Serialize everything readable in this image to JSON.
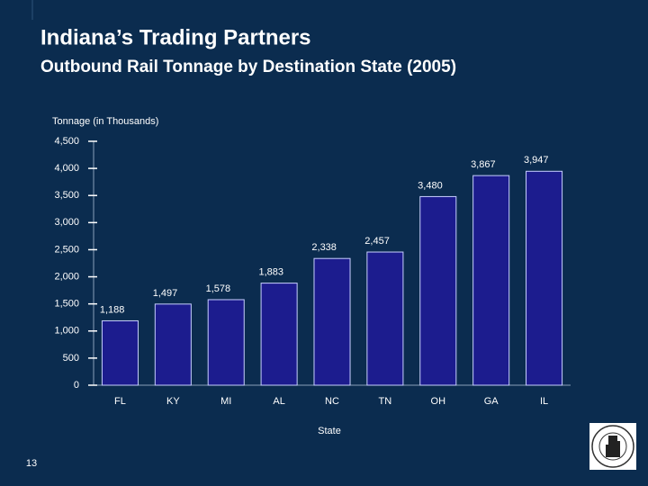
{
  "chart_data": {
    "type": "bar",
    "title": "Indiana’s Trading Partners",
    "subtitle": "Outbound Rail Tonnage by Destination State (2005)",
    "y_label": "Tonnage (in Thousands)",
    "x_label": "State",
    "page_number": "13",
    "categories": [
      "FL",
      "KY",
      "MI",
      "AL",
      "NC",
      "TN",
      "OH",
      "GA",
      "IL"
    ],
    "values": [
      1188,
      1497,
      1578,
      1883,
      2338,
      2457,
      3480,
      3867,
      3947
    ],
    "value_labels": [
      "1,188",
      "1,497",
      "1,578",
      "1,883",
      "2,338",
      "2,457",
      "3,480",
      "3,867",
      "3,947"
    ],
    "color": "#1c1c8e",
    "ylim": [
      0,
      4500
    ],
    "yticks": [
      0,
      500,
      {
        "value": 1000,
        "label": "1,000"
      },
      {
        "value": 1500,
        "label": "1,500"
      },
      {
        "value": 2000,
        "label": "2,000"
      },
      {
        "value": 2500,
        "label": "2,500"
      },
      {
        "value": 3000,
        "label": "3,000"
      },
      {
        "value": 3500,
        "label": "3,500"
      },
      {
        "value": 4000,
        "label": "4,000"
      },
      {
        "value": 4500,
        "label": "4,500"
      }
    ],
    "grid": false
  }
}
